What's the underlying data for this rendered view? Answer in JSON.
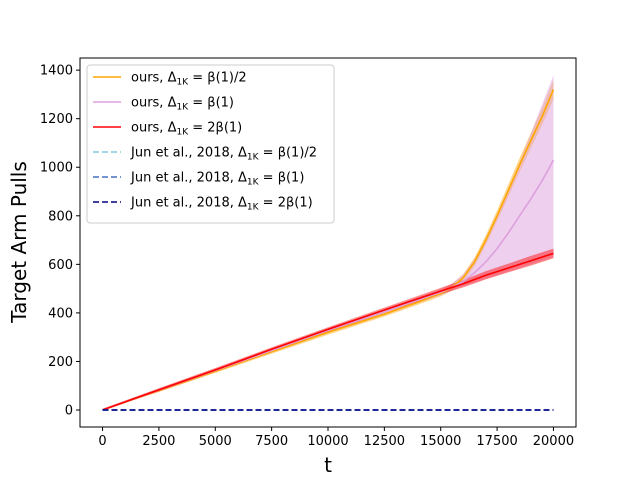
{
  "chart_data": {
    "type": "line",
    "xlabel": "t",
    "ylabel": "Target Arm Pulls",
    "xlim": [
      -1000,
      21000
    ],
    "ylim": [
      -70,
      1450
    ],
    "xticks": [
      0,
      2500,
      5000,
      7500,
      10000,
      12500,
      15000,
      17500,
      20000
    ],
    "xtick_labels": [
      "0",
      "2500",
      "5000",
      "7500",
      "10000",
      "12500",
      "15000",
      "17500",
      "20000"
    ],
    "yticks": [
      0,
      200,
      400,
      600,
      800,
      1000,
      1200,
      1400
    ],
    "ytick_labels": [
      "0",
      "200",
      "400",
      "600",
      "800",
      "1000",
      "1200",
      "1400"
    ],
    "grid": false,
    "legend_position": "top-left",
    "series": [
      {
        "name": "ours, Δ1K = β(1)/2",
        "legend": {
          "main": "ours, Δ",
          "sub": "1K",
          "rest": " = β(1)/2"
        },
        "color": "#ffa500",
        "style": "solid",
        "band_opacity": 0.45,
        "x": [
          0,
          2500,
          5000,
          7500,
          10000,
          12500,
          14000,
          15000,
          15500,
          16000,
          16500,
          17000,
          17500,
          18000,
          18500,
          19000,
          19500,
          20000
        ],
        "y": [
          0,
          80,
          160,
          240,
          320,
          395,
          445,
          480,
          505,
          545,
          610,
          700,
          800,
          905,
          1010,
          1110,
          1210,
          1320
        ],
        "upper": [
          5,
          86,
          167,
          248,
          330,
          405,
          456,
          492,
          518,
          560,
          628,
          720,
          822,
          930,
          1038,
          1142,
          1245,
          1360
        ],
        "lower": [
          0,
          74,
          153,
          232,
          310,
          385,
          434,
          468,
          492,
          530,
          592,
          680,
          778,
          880,
          982,
          1078,
          1175,
          1280
        ]
      },
      {
        "name": "ours, Δ1K = β(1)",
        "legend": {
          "main": "ours, Δ",
          "sub": "1K",
          "rest": " = β(1)"
        },
        "color": "#dda0dd",
        "style": "solid",
        "band_opacity": 0.5,
        "x": [
          0,
          2500,
          5000,
          7500,
          10000,
          12500,
          15000,
          15500,
          16000,
          16500,
          17000,
          17500,
          18000,
          18500,
          19000,
          19500,
          20000
        ],
        "y": [
          0,
          82,
          163,
          245,
          328,
          405,
          485,
          505,
          530,
          565,
          610,
          665,
          730,
          800,
          870,
          945,
          1030
        ],
        "upper": [
          5,
          88,
          170,
          252,
          336,
          415,
          498,
          522,
          560,
          620,
          700,
          800,
          910,
          1020,
          1140,
          1260,
          1380
        ],
        "lower": [
          0,
          76,
          156,
          238,
          320,
          395,
          472,
          492,
          510,
          525,
          540,
          555,
          570,
          585,
          600,
          615,
          630
        ]
      },
      {
        "name": "ours, Δ1K = 2β(1)",
        "legend": {
          "main": "ours, Δ",
          "sub": "1K",
          "rest": " = 2β(1)"
        },
        "color": "#ff0000",
        "style": "solid",
        "band_opacity": 0.45,
        "x": [
          0,
          2500,
          5000,
          7500,
          10000,
          12500,
          15000,
          16000,
          17000,
          18000,
          19000,
          20000
        ],
        "y": [
          0,
          83,
          165,
          250,
          332,
          412,
          490,
          520,
          555,
          585,
          615,
          645
        ],
        "upper": [
          5,
          90,
          173,
          258,
          341,
          422,
          503,
          535,
          572,
          603,
          635,
          665
        ],
        "lower": [
          0,
          76,
          157,
          242,
          323,
          402,
          477,
          505,
          538,
          567,
          595,
          625
        ]
      },
      {
        "name": "Jun et al., 2018, Δ1K = β(1)/2",
        "legend": {
          "main": "Jun et al., 2018, Δ",
          "sub": "1K",
          "rest": " = β(1)/2"
        },
        "color": "#7ec8e3",
        "style": "dashed",
        "x": [
          0,
          20000
        ],
        "y": [
          0,
          0
        ]
      },
      {
        "name": "Jun et al., 2018, Δ1K = β(1)",
        "legend": {
          "main": "Jun et al., 2018, Δ",
          "sub": "1K",
          "rest": " = β(1)"
        },
        "color": "#4472c4",
        "style": "dashed",
        "x": [
          0,
          20000
        ],
        "y": [
          0,
          0
        ]
      },
      {
        "name": "Jun et al., 2018, Δ1K = 2β(1)",
        "legend": {
          "main": "Jun et al., 2018, Δ",
          "sub": "1K",
          "rest": " = 2β(1)"
        },
        "color": "#000080",
        "style": "dashed",
        "x": [
          0,
          20000
        ],
        "y": [
          0,
          0
        ]
      }
    ]
  }
}
